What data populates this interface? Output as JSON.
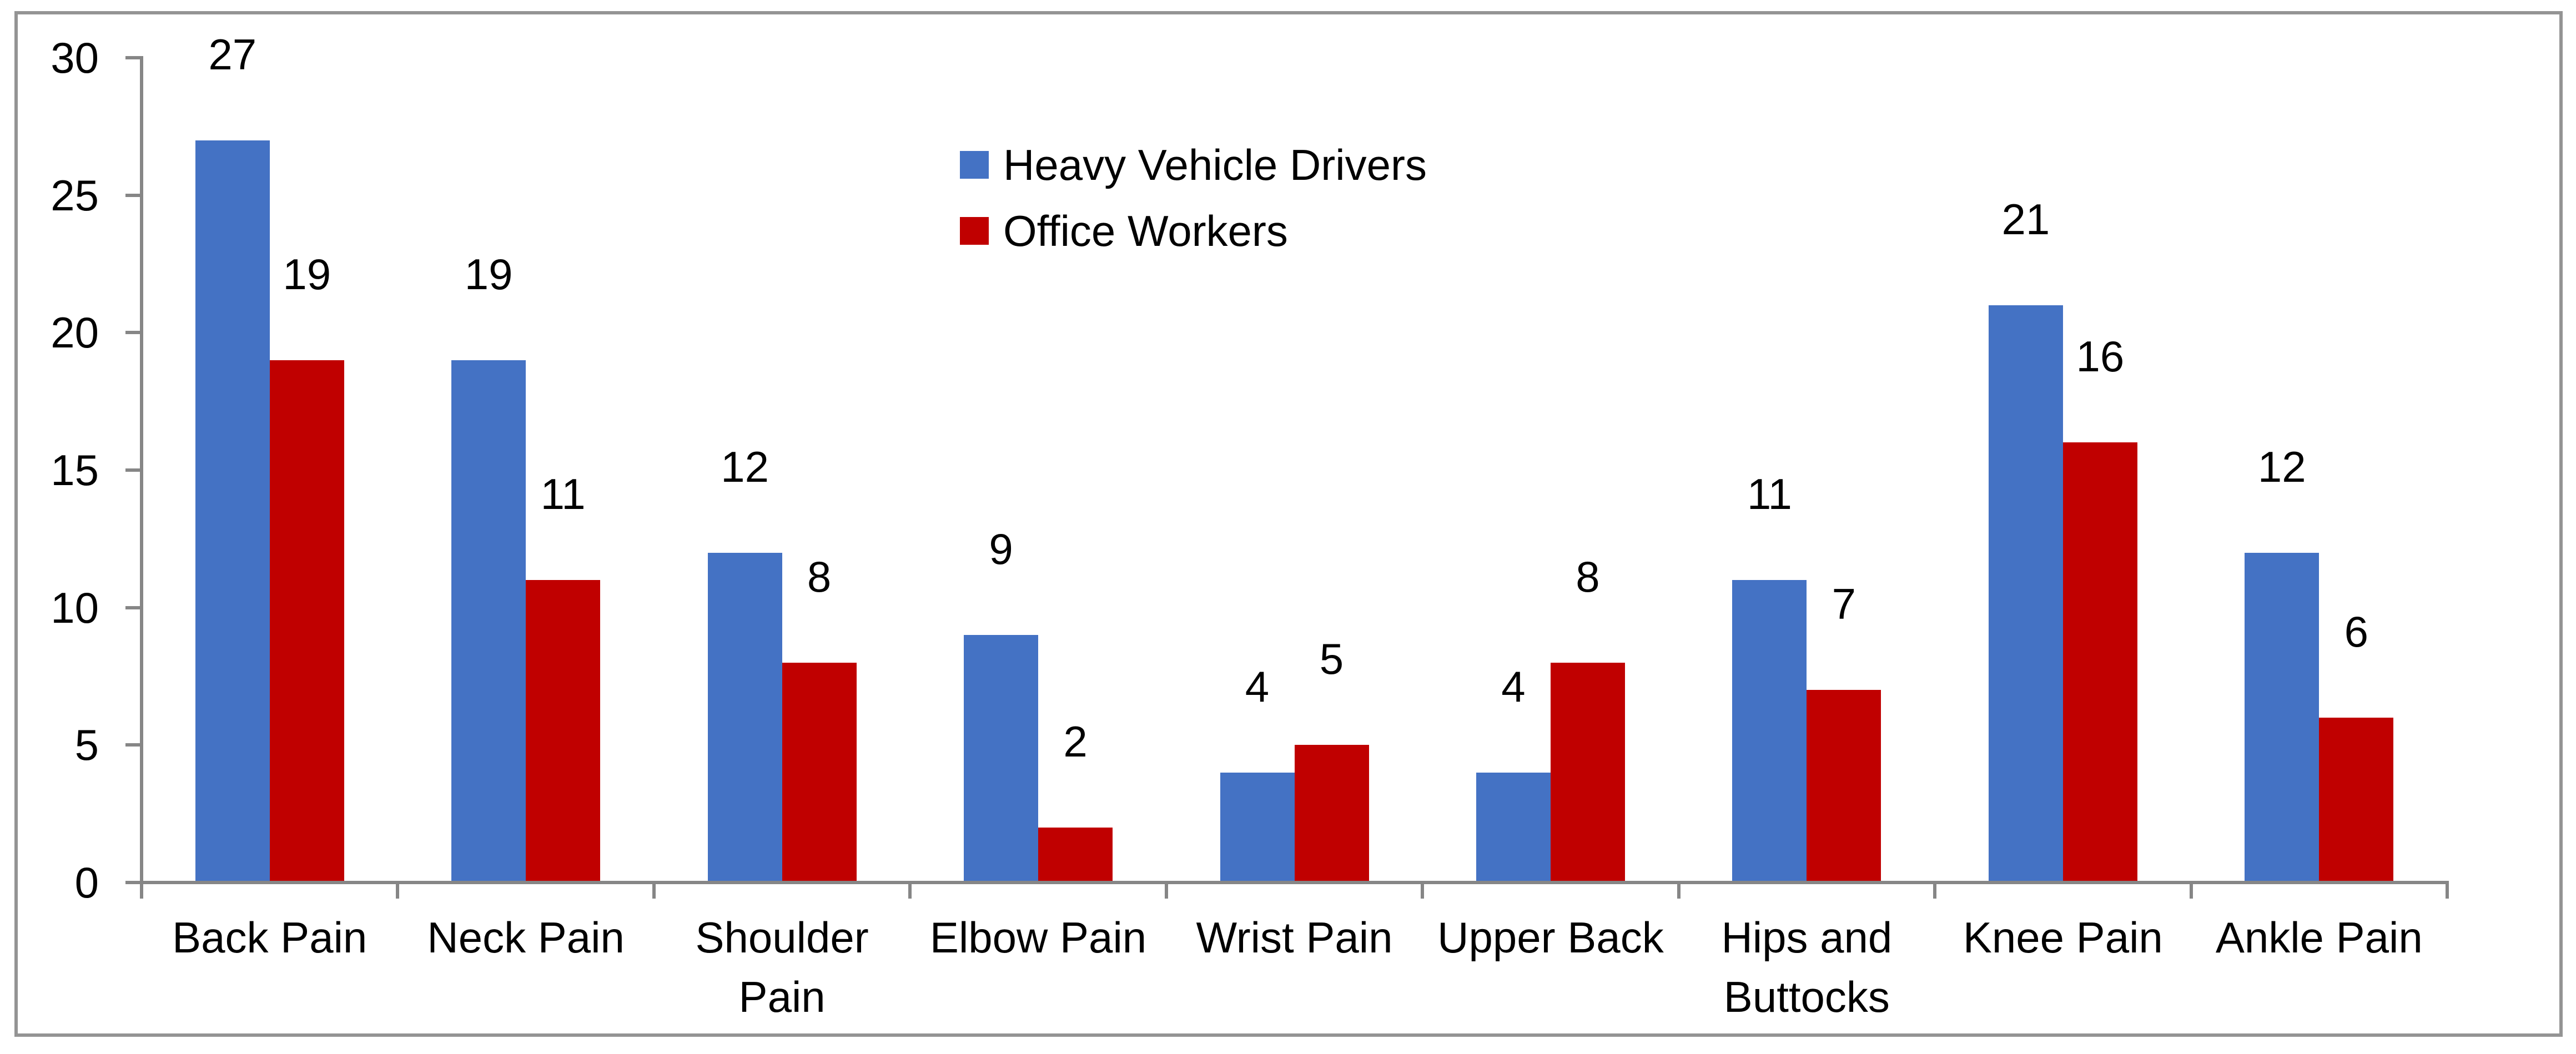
{
  "chart_data": {
    "type": "bar",
    "title": "",
    "categories": [
      "Back Pain",
      "Neck Pain",
      "Shoulder Pain",
      "Elbow Pain",
      "Wrist Pain",
      "Upper Back",
      "Hips and Buttocks",
      "Knee Pain",
      "Ankle Pain"
    ],
    "series": [
      {
        "name": "Heavy Vehicle Drivers",
        "color": "#4472C4",
        "values": [
          27,
          19,
          12,
          9,
          4,
          4,
          11,
          21,
          12
        ]
      },
      {
        "name": "Office Workers",
        "color": "#C00000",
        "values": [
          19,
          11,
          8,
          2,
          5,
          8,
          7,
          16,
          6
        ]
      }
    ],
    "ylim": [
      0,
      30
    ],
    "y_ticks": [
      0,
      5,
      10,
      15,
      20,
      25,
      30
    ],
    "grid": false,
    "data_labels": true,
    "legend_position": "inside-top-center",
    "axis_color": "#868686",
    "frame_color": "#949494",
    "label_color": "#000000"
  }
}
